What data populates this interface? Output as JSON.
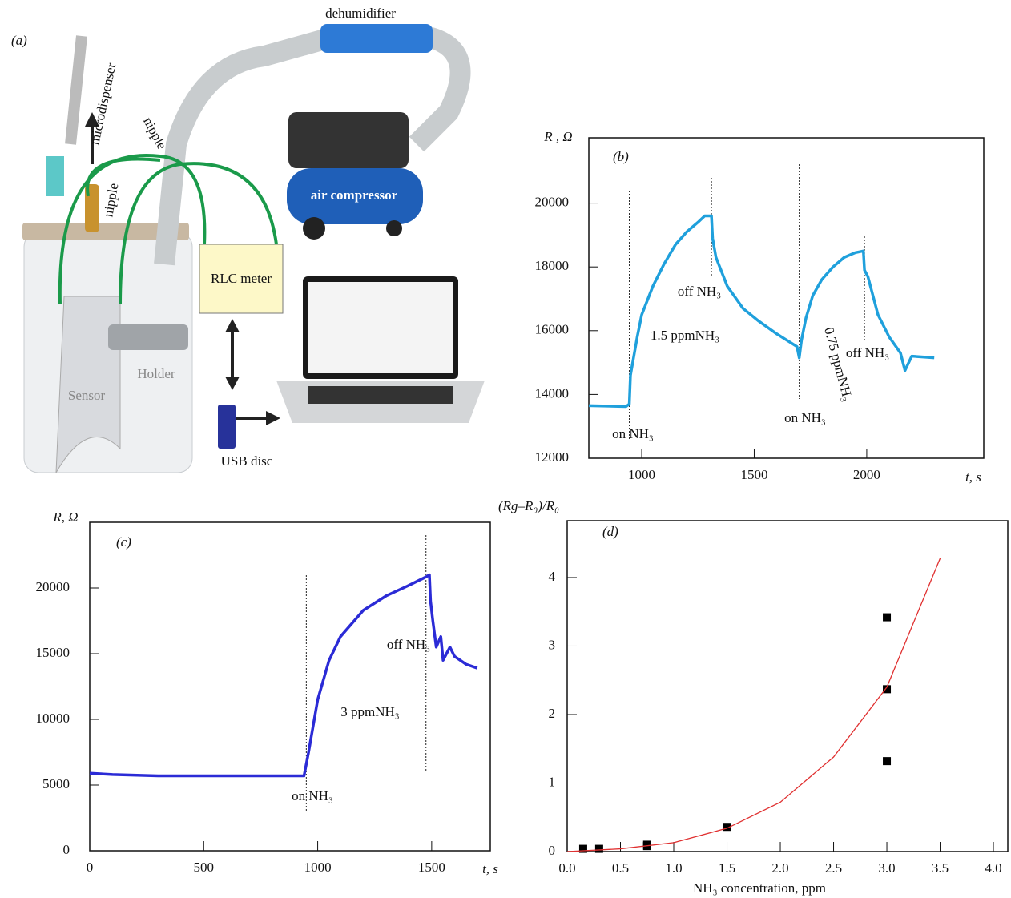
{
  "diagram": {
    "panel_label": "(a)",
    "labels": {
      "dehumidifier": "dehumidifier",
      "microdispenser": "microdispenser",
      "nipple_left": "nipple",
      "nipple_right": "nipple",
      "compressor": "air compressor",
      "rlc": "RLC meter",
      "holder": "Holder",
      "sensor": "Sensor",
      "usb": "USB disc"
    }
  },
  "chart_data": [
    {
      "type": "line",
      "panel_label": "(b)",
      "y_label": "R , Ω",
      "x_label": "t, s",
      "color": "#1fa0dc",
      "x": [
        765,
        930,
        945,
        950,
        980,
        1000,
        1050,
        1100,
        1150,
        1200,
        1250,
        1280,
        1310,
        1315,
        1330,
        1380,
        1450,
        1520,
        1600,
        1690,
        1700,
        1710,
        1730,
        1760,
        1800,
        1850,
        1900,
        1950,
        1985,
        1990,
        2005,
        2050,
        2100,
        2150,
        2170,
        2200,
        2300
      ],
      "values": [
        13650,
        13620,
        13700,
        14600,
        15800,
        16500,
        17400,
        18100,
        18700,
        19100,
        19400,
        19600,
        19600,
        18900,
        18300,
        17400,
        16700,
        16300,
        15900,
        15500,
        15150,
        15700,
        16400,
        17100,
        17600,
        18000,
        18300,
        18450,
        18500,
        17900,
        17700,
        16500,
        15800,
        15300,
        14750,
        15200,
        15150
      ],
      "xlim": [
        765,
        2520
      ],
      "ylim": [
        12000,
        22050
      ],
      "xticks": [
        1000,
        1500,
        2000
      ],
      "yticks": [
        12000,
        14000,
        16000,
        18000,
        20000
      ],
      "events": [
        {
          "t": 945,
          "label": "on NH₃"
        },
        {
          "t": 1310,
          "label": "off NH₃"
        },
        {
          "t": 1700,
          "label": "on NH₃"
        },
        {
          "t": 1990,
          "label": "off NH₃"
        }
      ],
      "annotations": [
        "1.5 ppmNH₃",
        "0.75 ppmNH₃"
      ]
    },
    {
      "type": "line",
      "panel_label": "(c)",
      "y_label": "R, Ω",
      "x_label": "t, s",
      "color": "#2b2bd6",
      "x": [
        0,
        100,
        300,
        500,
        940,
        960,
        1000,
        1050,
        1100,
        1200,
        1300,
        1400,
        1470,
        1490,
        1495,
        1505,
        1520,
        1540,
        1550,
        1580,
        1600,
        1650,
        1700
      ],
      "values": [
        5900,
        5800,
        5700,
        5700,
        5700,
        7500,
        11500,
        14500,
        16300,
        18300,
        19400,
        20200,
        20800,
        21000,
        19000,
        17500,
        15500,
        16300,
        14500,
        15500,
        14800,
        14200,
        13900
      ],
      "xlim": [
        0,
        1757
      ],
      "ylim": [
        0,
        25000
      ],
      "xticks": [
        0,
        500,
        1000,
        1500
      ],
      "yticks": [
        0,
        5000,
        10000,
        15000,
        20000
      ],
      "events": [
        {
          "t": 950,
          "label": "on NH₃"
        },
        {
          "t": 1475,
          "label": "off NH₃"
        }
      ],
      "annotations": [
        "3 ppmNH₃"
      ]
    },
    {
      "type": "scatter",
      "panel_label": "(d)",
      "y_label": "(Rg–R₀)/R₀",
      "x_label": "NH₃ concentration, ppm",
      "xlim": [
        0,
        4.135
      ],
      "ylim": [
        0,
        4.83
      ],
      "xticks": [
        {
          "value": 0,
          "label": "0.0"
        },
        {
          "value": 0.5,
          "label": "0.5"
        },
        {
          "value": 1,
          "label": "1.0"
        },
        {
          "value": 1.5,
          "label": "1.5"
        },
        {
          "value": 2,
          "label": "2.0"
        },
        {
          "value": 2.5,
          "label": "2.5"
        },
        {
          "value": 3,
          "label": "3.0"
        },
        {
          "value": 3.5,
          "label": "3.5"
        },
        {
          "value": 4,
          "label": "4.0"
        }
      ],
      "yticks": [
        0,
        1,
        2,
        3,
        4
      ],
      "series": [
        {
          "color": "#000000",
          "marker": "square",
          "x": [
            0.15,
            0.3,
            0.75,
            0.75,
            1.5,
            3,
            3,
            3
          ],
          "values": [
            0.04,
            0.04,
            0.08,
            0.1,
            0.36,
            3.42,
            2.37,
            1.32
          ]
        },
        {
          "color": "#e03030",
          "marker": "none",
          "x": [
            0,
            0.5,
            1,
            1.5,
            2,
            2.5,
            3,
            3.5
          ],
          "values": [
            0,
            0.04,
            0.13,
            0.34,
            0.72,
            1.38,
            2.4,
            4.28
          ]
        }
      ]
    }
  ]
}
